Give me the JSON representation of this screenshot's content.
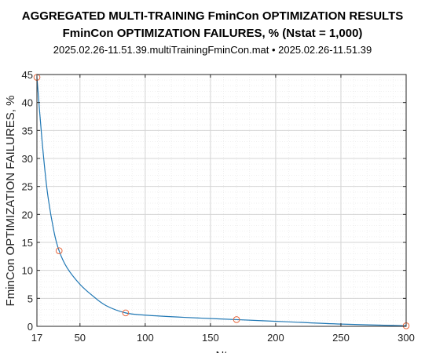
{
  "titles": {
    "line1": "AGGREGATED MULTI-TRAINING FminCon OPTIMIZATION RESULTS",
    "line2": "FminCon OPTIMIZATION FAILURES, % (Nstat = 1,000)",
    "line3": "2025.02.26-11.51.39.multiTrainingFminCon.mat  •  2025.02.26-11.51.39"
  },
  "chart_data": {
    "type": "line",
    "title": "AGGREGATED MULTI-TRAINING FminCon OPTIMIZATION RESULTS",
    "subtitle": "FminCon OPTIMIZATION FAILURES, % (Nstat = 1,000)",
    "xlabel": "Nt",
    "ylabel": "FminCon OPTIMIZATION FAILURES, %",
    "xlim": [
      17,
      300
    ],
    "ylim": [
      0,
      45
    ],
    "xticks": [
      17,
      50,
      100,
      150,
      200,
      250,
      300
    ],
    "yticks": [
      0,
      5,
      10,
      15,
      20,
      25,
      30,
      35,
      40,
      45
    ],
    "grid": true,
    "series": [
      {
        "style": "curve",
        "color": "#1f77b4",
        "x": [
          17,
          21,
          25,
          30,
          34,
          40,
          50,
          60,
          70,
          85,
          100,
          130,
          170,
          210,
          250,
          300
        ],
        "y": [
          44.5,
          33,
          24,
          17,
          13.5,
          10.5,
          7.5,
          5.4,
          3.7,
          2.4,
          2.0,
          1.6,
          1.2,
          0.8,
          0.4,
          0.1
        ]
      },
      {
        "style": "markers",
        "color": "#e8673c",
        "x": [
          17,
          34,
          85,
          170,
          300
        ],
        "y": [
          44.5,
          13.5,
          2.4,
          1.2,
          0.1
        ]
      }
    ]
  }
}
